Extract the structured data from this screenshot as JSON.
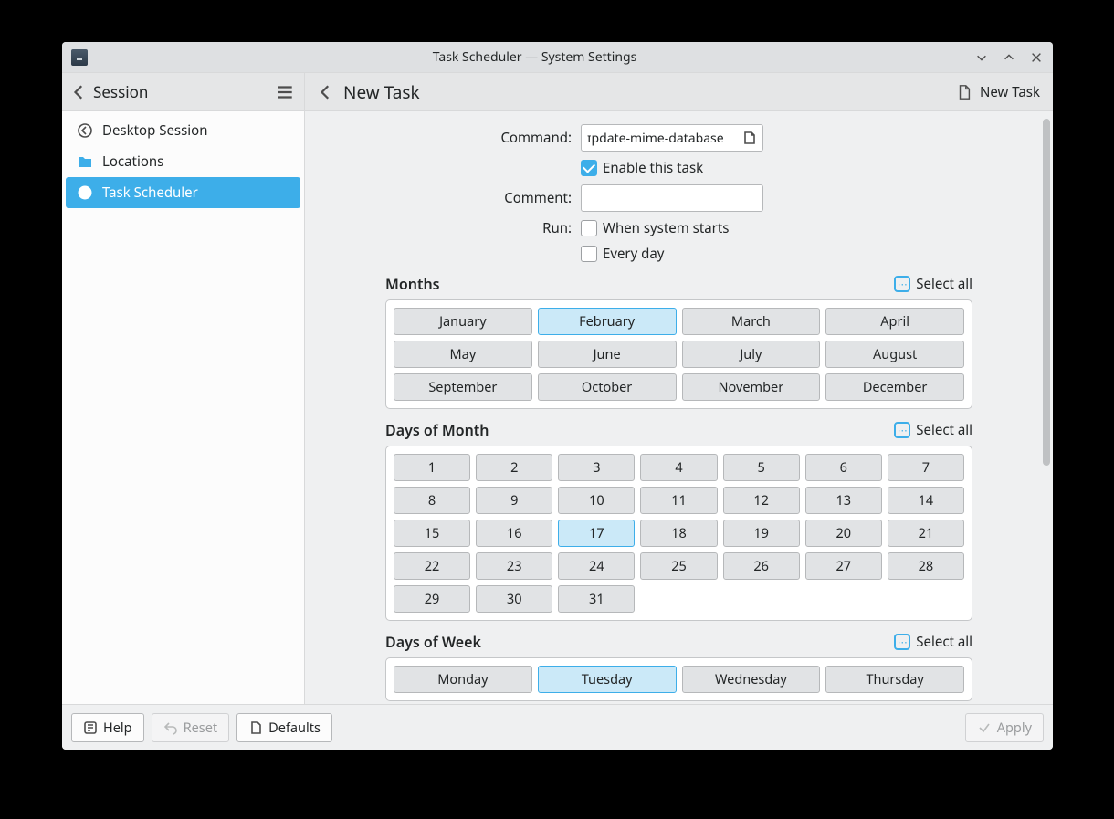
{
  "colors": {
    "accent": "#3daee9",
    "window_bg": "#eff0f1",
    "panel_bg": "#ffffff",
    "btn_bg": "#e1e3e5",
    "btn_sel_bg": "#cbe9f8",
    "border": "#b6b8ba"
  },
  "titlebar": {
    "title": "Task Scheduler — System Settings"
  },
  "toolbar": {
    "breadcrumb": "Session",
    "page_title": "New Task",
    "new_task_label": "New Task"
  },
  "sidebar": {
    "items": [
      {
        "icon": "back-circle-icon",
        "label": "Desktop Session",
        "active": false
      },
      {
        "icon": "folder-icon",
        "label": "Locations",
        "active": false
      },
      {
        "icon": "clock-icon",
        "label": "Task Scheduler",
        "active": true
      }
    ]
  },
  "form": {
    "command_label": "Command:",
    "command_value": "ɪpdate-mime-database",
    "enable_label": "Enable this task",
    "enable_checked": true,
    "comment_label": "Comment:",
    "comment_value": "",
    "run_label": "Run:",
    "run_system_starts": {
      "label": "When system starts",
      "checked": false
    },
    "run_every_day": {
      "label": "Every day",
      "checked": false
    }
  },
  "select_all_label": "Select all",
  "sections": {
    "months": {
      "title": "Months",
      "grid": "months",
      "items": [
        {
          "label": "January",
          "sel": false
        },
        {
          "label": "February",
          "sel": true
        },
        {
          "label": "March",
          "sel": false
        },
        {
          "label": "April",
          "sel": false
        },
        {
          "label": "May",
          "sel": false
        },
        {
          "label": "June",
          "sel": false
        },
        {
          "label": "July",
          "sel": false
        },
        {
          "label": "August",
          "sel": false
        },
        {
          "label": "September",
          "sel": false
        },
        {
          "label": "October",
          "sel": false
        },
        {
          "label": "November",
          "sel": false
        },
        {
          "label": "December",
          "sel": false
        }
      ]
    },
    "days_of_month": {
      "title": "Days of Month",
      "grid": "days",
      "items": [
        {
          "label": "1",
          "sel": false
        },
        {
          "label": "2",
          "sel": false
        },
        {
          "label": "3",
          "sel": false
        },
        {
          "label": "4",
          "sel": false
        },
        {
          "label": "5",
          "sel": false
        },
        {
          "label": "6",
          "sel": false
        },
        {
          "label": "7",
          "sel": false
        },
        {
          "label": "8",
          "sel": false
        },
        {
          "label": "9",
          "sel": false
        },
        {
          "label": "10",
          "sel": false
        },
        {
          "label": "11",
          "sel": false
        },
        {
          "label": "12",
          "sel": false
        },
        {
          "label": "13",
          "sel": false
        },
        {
          "label": "14",
          "sel": false
        },
        {
          "label": "15",
          "sel": false
        },
        {
          "label": "16",
          "sel": false
        },
        {
          "label": "17",
          "sel": true
        },
        {
          "label": "18",
          "sel": false
        },
        {
          "label": "19",
          "sel": false
        },
        {
          "label": "20",
          "sel": false
        },
        {
          "label": "21",
          "sel": false
        },
        {
          "label": "22",
          "sel": false
        },
        {
          "label": "23",
          "sel": false
        },
        {
          "label": "24",
          "sel": false
        },
        {
          "label": "25",
          "sel": false
        },
        {
          "label": "26",
          "sel": false
        },
        {
          "label": "27",
          "sel": false
        },
        {
          "label": "28",
          "sel": false
        },
        {
          "label": "29",
          "sel": false
        },
        {
          "label": "30",
          "sel": false
        },
        {
          "label": "31",
          "sel": false
        }
      ]
    },
    "days_of_week": {
      "title": "Days of Week",
      "grid": "weekdays",
      "items": [
        {
          "label": "Monday",
          "sel": false
        },
        {
          "label": "Tuesday",
          "sel": true
        },
        {
          "label": "Wednesday",
          "sel": false
        },
        {
          "label": "Thursday",
          "sel": false
        }
      ]
    }
  },
  "footer": {
    "help": "Help",
    "reset": "Reset",
    "defaults": "Defaults",
    "apply": "Apply"
  }
}
